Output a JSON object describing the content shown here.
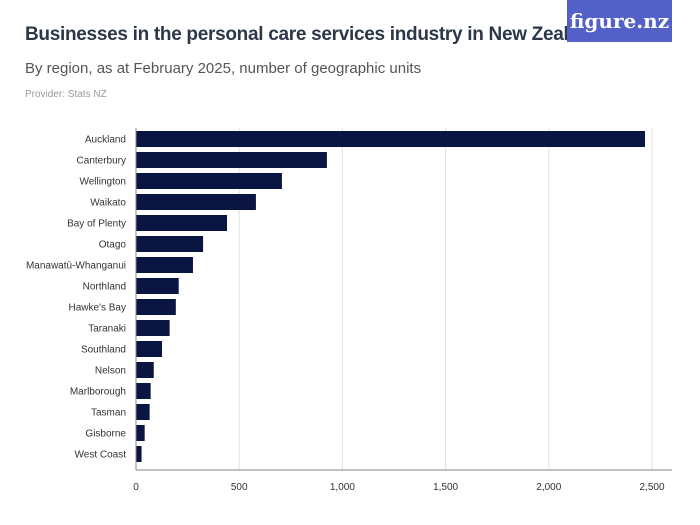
{
  "header": {
    "title": "Businesses in the personal care services industry in New Zealand",
    "subtitle": "By region, as at February 2025, number of geographic units",
    "provider": "Provider: Stats NZ",
    "logo": "figure.nz"
  },
  "chart_data": {
    "type": "bar",
    "orientation": "horizontal",
    "title": "Businesses in the personal care services industry in New Zealand",
    "subtitle": "By region, as at February 2025, number of geographic units",
    "categories": [
      "Auckland",
      "Canterbury",
      "Wellington",
      "Waikato",
      "Bay of Plenty",
      "Otago",
      "Manawatū-Whanganui",
      "Northland",
      "Hawke's Bay",
      "Taranaki",
      "Southland",
      "Nelson",
      "Marlborough",
      "Tasman",
      "Gisborne",
      "West Coast"
    ],
    "values": [
      2466,
      925,
      707,
      581,
      441,
      325,
      276,
      207,
      193,
      163,
      126,
      86,
      71,
      66,
      42,
      27
    ],
    "xlim": [
      0,
      2500
    ],
    "xticks": [
      0,
      500,
      1000,
      1500,
      2000,
      2500
    ],
    "xtick_labels": [
      "0",
      "500",
      "1,000",
      "1,500",
      "2,000",
      "2,500"
    ],
    "grid": "vertical",
    "bar_color": "#0b1541",
    "grid_color": "#e0e0e0"
  }
}
